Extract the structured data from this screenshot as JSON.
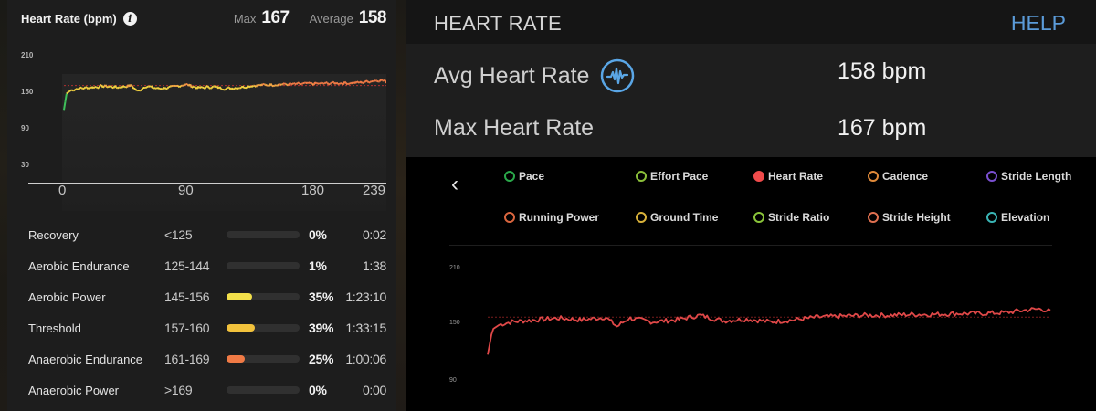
{
  "left_panel": {
    "title": "Heart Rate (bpm)",
    "info_icon": "info-icon",
    "max_label": "Max",
    "max_value": "167",
    "avg_label": "Average",
    "avg_value": "158",
    "zones": [
      {
        "name": "Recovery",
        "range": "<125",
        "percent": "0%",
        "time": "0:02",
        "fill": 0,
        "color": "#3a3a3a"
      },
      {
        "name": "Aerobic Endurance",
        "range": "125-144",
        "percent": "1%",
        "time": "1:38",
        "fill": 0,
        "color": "#3a3a3a"
      },
      {
        "name": "Aerobic Power",
        "range": "145-156",
        "percent": "35%",
        "time": "1:23:10",
        "fill": 35,
        "color": "#f3e04a"
      },
      {
        "name": "Threshold",
        "range": "157-160",
        "percent": "39%",
        "time": "1:33:15",
        "fill": 39,
        "color": "#f2c23c"
      },
      {
        "name": "Anaerobic Endurance",
        "range": "161-169",
        "percent": "25%",
        "time": "1:00:06",
        "fill": 25,
        "color": "#f07a45"
      },
      {
        "name": "Anaerobic Power",
        "range": ">169",
        "percent": "0%",
        "time": "0:00",
        "fill": 0,
        "color": "#3a3a3a"
      }
    ]
  },
  "right_panel": {
    "title": "HEART RATE",
    "help_label": "HELP",
    "metrics": [
      {
        "label": "Avg Heart Rate",
        "value": "158 bpm",
        "icon": "pulse-icon"
      },
      {
        "label": "Max Heart Rate",
        "value": "167 bpm"
      }
    ],
    "back_icon": "chevron-left-icon",
    "legend": [
      {
        "label": "Pace",
        "color": "#2aa84a",
        "active": false
      },
      {
        "label": "Effort Pace",
        "color": "#8bbf3a",
        "active": false
      },
      {
        "label": "Heart Rate",
        "color": "#f04b4b",
        "active": true
      },
      {
        "label": "Cadence",
        "color": "#e08a3a",
        "active": false
      },
      {
        "label": "Stride Length",
        "color": "#7a4fd0",
        "active": false
      },
      {
        "label": "Running Power",
        "color": "#d9653e",
        "active": false
      },
      {
        "label": "Ground Time",
        "color": "#d9b23a",
        "active": false
      },
      {
        "label": "Stride Ratio",
        "color": "#8ac43a",
        "active": false
      },
      {
        "label": "Stride Height",
        "color": "#e07050",
        "active": false
      },
      {
        "label": "Elevation",
        "color": "#3ab5b5",
        "active": false
      }
    ]
  },
  "chart_data": [
    {
      "type": "line",
      "title": "Heart Rate (bpm)",
      "xlabel": "",
      "ylabel": "bpm",
      "x_ticks": [
        0,
        90,
        180,
        239
      ],
      "y_ticks": [
        30,
        90,
        150,
        210
      ],
      "ylim": [
        30,
        210
      ],
      "xlim": [
        0,
        239
      ],
      "reference_line": 158,
      "series": [
        {
          "name": "Heart Rate",
          "x": [
            0,
            2,
            5,
            10,
            20,
            30,
            40,
            50,
            55,
            60,
            70,
            80,
            90,
            100,
            110,
            120,
            130,
            140,
            150,
            160,
            170,
            180,
            190,
            200,
            210,
            220,
            230,
            235,
            239
          ],
          "values": [
            118,
            145,
            150,
            153,
            155,
            157,
            155,
            158,
            148,
            157,
            153,
            155,
            160,
            154,
            156,
            153,
            155,
            158,
            159,
            160,
            160,
            161,
            161,
            162,
            162,
            163,
            166,
            167,
            164
          ]
        }
      ]
    },
    {
      "type": "line",
      "title": "HEART RATE",
      "y_ticks": [
        90,
        150,
        210
      ],
      "ylim": [
        90,
        210
      ],
      "reference_line": 158,
      "series": [
        {
          "name": "Heart Rate",
          "x": [
            0,
            2,
            5,
            10,
            20,
            30,
            40,
            50,
            55,
            60,
            70,
            80,
            90,
            100,
            110,
            120,
            130,
            140,
            150,
            160,
            170,
            180,
            190,
            200,
            210,
            220,
            230,
            235,
            239
          ],
          "values": [
            118,
            145,
            150,
            153,
            155,
            157,
            155,
            158,
            148,
            157,
            153,
            155,
            160,
            154,
            156,
            153,
            155,
            158,
            159,
            160,
            160,
            161,
            161,
            162,
            162,
            163,
            166,
            167,
            164
          ]
        }
      ]
    }
  ],
  "axes": {
    "left_y": [
      "210",
      "150",
      "90",
      "30"
    ],
    "left_x": [
      "0",
      "90",
      "180",
      "239"
    ],
    "right_y": [
      "210",
      "150",
      "90"
    ]
  }
}
